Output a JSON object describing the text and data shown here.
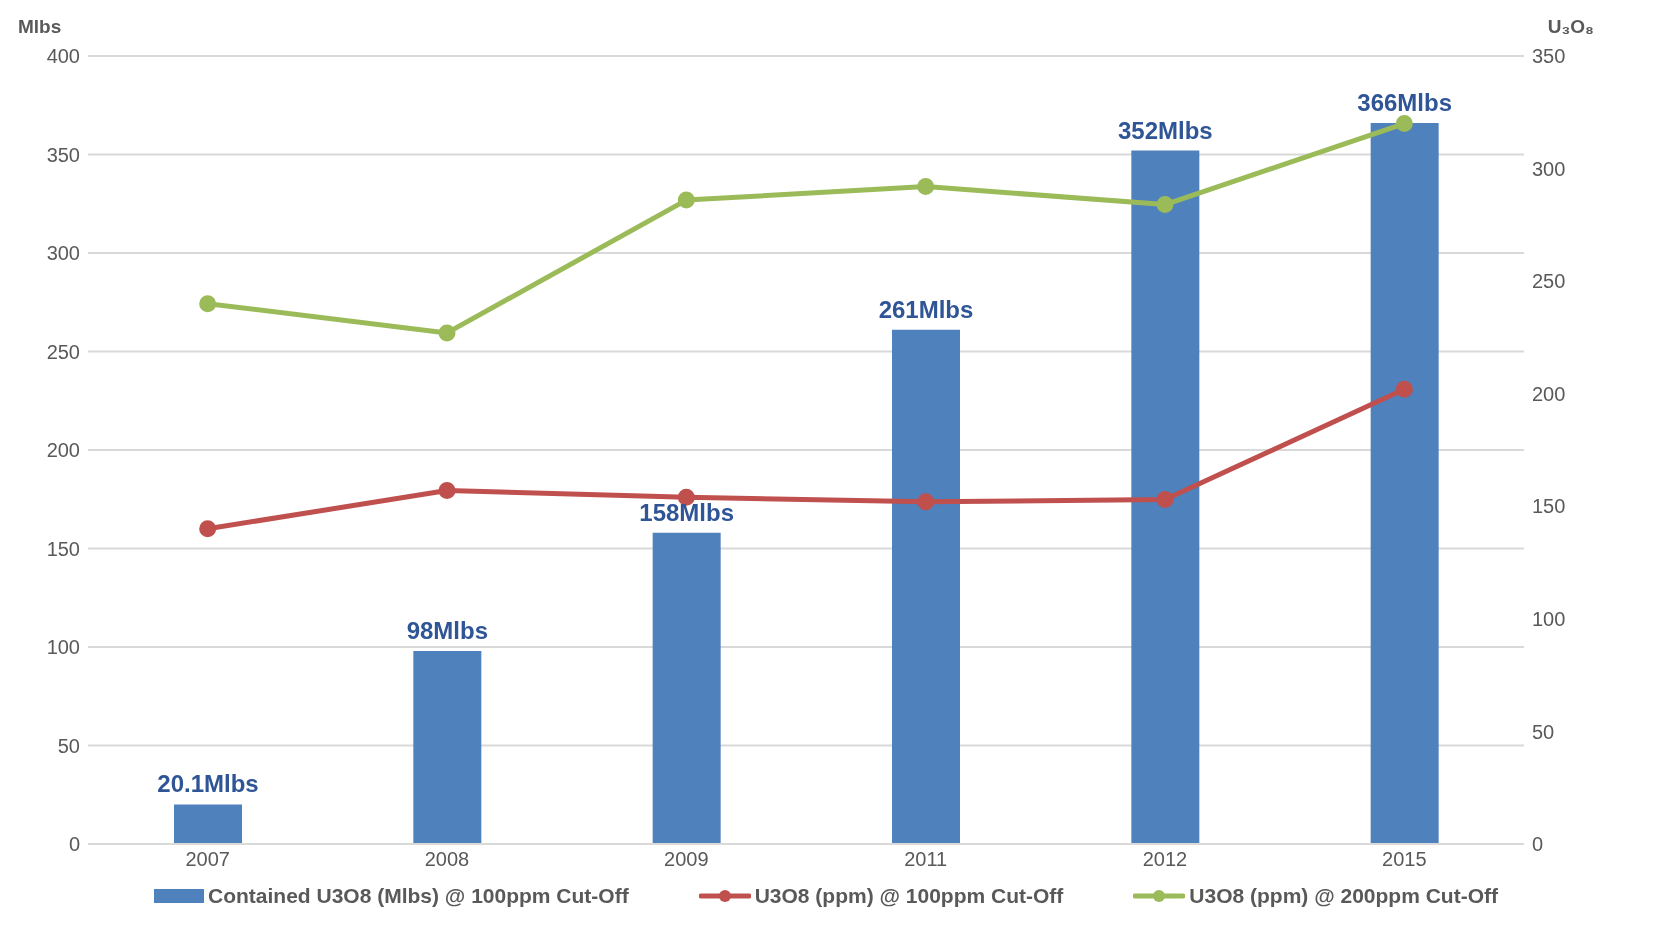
{
  "chart_data": {
    "type": "bar",
    "ylabel": "Mlbs",
    "y2label": "U₃O₈",
    "categories": [
      "2007",
      "2008",
      "2009",
      "2011",
      "2012",
      "2015"
    ],
    "series": [
      {
        "name": "Contained U3O8 (Mlbs) @ 100ppm Cut-Off",
        "color": "#4f81bd",
        "values": [
          20.1,
          98,
          158,
          261,
          352,
          366
        ],
        "value_labels": [
          "20.1Mlbs",
          "98Mlbs",
          "158Mlbs",
          "261Mlbs",
          "352Mlbs",
          "366Mlbs"
        ]
      },
      {
        "name": "U3O8 (ppm) @ 100ppm Cut-Off",
        "type": "line",
        "axis": "y2",
        "color": "#c0504d",
        "values": [
          140,
          157,
          154,
          152,
          153,
          202
        ]
      },
      {
        "name": "U3O8 (ppm) @ 200ppm Cut-Off",
        "type": "line",
        "axis": "y2",
        "color": "#9bbb59",
        "values": [
          240,
          227,
          286,
          292,
          284,
          320
        ]
      }
    ],
    "ylim": [
      0,
      400
    ],
    "yticks": [
      0,
      50,
      100,
      150,
      200,
      250,
      300,
      350,
      400
    ],
    "y2lim": [
      0,
      350
    ],
    "y2ticks": [
      0,
      50,
      100,
      150,
      200,
      250,
      300,
      350
    ],
    "grid": "y",
    "legend": "bottom",
    "marker": "circle",
    "line_style": "solid"
  }
}
